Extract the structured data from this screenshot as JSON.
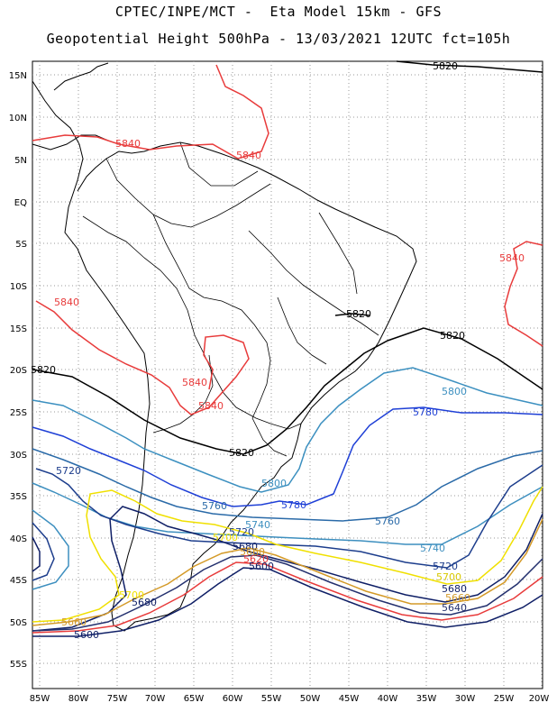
{
  "header": {
    "line1": "CPTEC/INPE/MCT -  Eta Model 15km - GFS",
    "line2": "Geopotential Height 500hPa - 13/03/2021 12UTC fct=105h"
  },
  "axes": {
    "lat_ticks": [
      "15N",
      "10N",
      "5N",
      "EQ",
      "5S",
      "10S",
      "15S",
      "20S",
      "25S",
      "30S",
      "35S",
      "40S",
      "45S",
      "50S",
      "55S"
    ],
    "lon_ticks": [
      "85W",
      "80W",
      "75W",
      "70W",
      "65W",
      "60W",
      "55W",
      "50W",
      "45W",
      "40W",
      "35W",
      "30W",
      "25W",
      "20W"
    ]
  },
  "colors": {
    "c5640": "#23306e",
    "c5680": "#0f1f66",
    "c5720": "#1c3d8c",
    "c5740": "#3d8fbf",
    "c5760": "#2a6aa8",
    "c5780": "#1e3fd6",
    "c5800": "#3c90c0",
    "c5820": "#000000",
    "c5840": "#e83b3b",
    "c5700": "#f0e000",
    "c5660": "#d49a28"
  },
  "contours": [
    {
      "id": "5820",
      "label": "5820"
    },
    {
      "id": "5840",
      "label": "5840"
    },
    {
      "id": "5800",
      "label": "5800"
    },
    {
      "id": "5780",
      "label": "5780"
    },
    {
      "id": "5760",
      "label": "5760"
    },
    {
      "id": "5740",
      "label": "5740"
    },
    {
      "id": "5720",
      "label": "5720"
    },
    {
      "id": "5700",
      "label": "5700"
    },
    {
      "id": "5680",
      "label": "5680"
    },
    {
      "id": "5660",
      "label": "5660"
    },
    {
      "id": "5640",
      "label": "5640"
    },
    {
      "id": "5620",
      "label": "5620"
    },
    {
      "id": "5600",
      "label": "5600"
    }
  ]
}
